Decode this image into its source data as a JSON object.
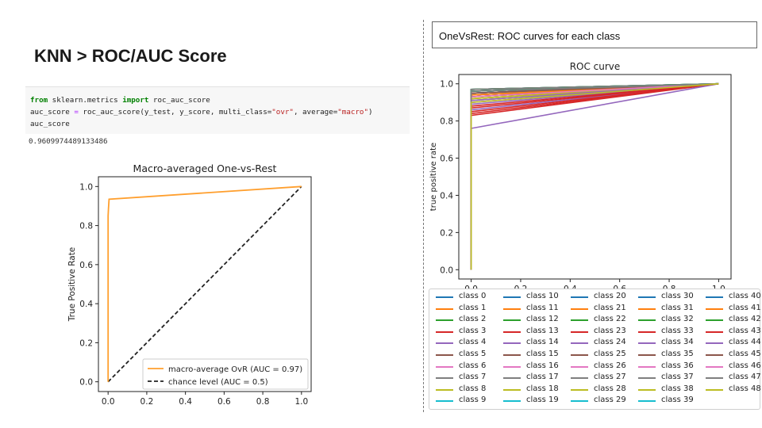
{
  "slide": {
    "title": "KNN > ROC/AUC Score",
    "right_panel_title": "OneVsRest: ROC curves for each class"
  },
  "code": {
    "line1": {
      "kw_from": "from",
      "module": " sklearn.metrics ",
      "kw_import": "import",
      "name": " roc_auc_score"
    },
    "line2": {
      "lhs": "auc_score ",
      "eq": "=",
      "call": " roc_auc_score(y_test, y_score, multi_class=",
      "str1": "\"ovr\"",
      "mid": ", average=",
      "str2": "\"macro\"",
      "end": ")"
    },
    "line3": "auc_score",
    "output": "0.9609974489133486"
  },
  "chart_data": [
    {
      "type": "line",
      "title": "Macro-averaged One-vs-Rest",
      "xlabel": "",
      "ylabel": "True Positive Rate",
      "xlim": [
        -0.05,
        1.05
      ],
      "ylim": [
        -0.05,
        1.05
      ],
      "xticks": [
        "0.0",
        "0.2",
        "0.4",
        "0.6",
        "0.8",
        "1.0"
      ],
      "yticks": [
        "0.0",
        "0.2",
        "0.4",
        "0.6",
        "0.8",
        "1.0"
      ],
      "legend_position": "lower-right",
      "series": [
        {
          "name": "macro-average OvR (AUC = 0.97)",
          "color": "#ff9f2e",
          "style": "solid",
          "x": [
            0.0,
            0.0,
            0.002,
            0.005,
            1.0
          ],
          "y": [
            0.0,
            0.85,
            0.89,
            0.935,
            1.0
          ]
        },
        {
          "name": "chance level (AUC = 0.5)",
          "color": "#222222",
          "style": "dashed",
          "x": [
            0.0,
            1.0
          ],
          "y": [
            0.0,
            1.0
          ]
        }
      ]
    },
    {
      "type": "line",
      "title": "ROC curve",
      "xlabel": "",
      "ylabel": "true positive rate",
      "xlim": [
        -0.05,
        1.05
      ],
      "ylim": [
        -0.05,
        1.05
      ],
      "xticks": [
        "0.0",
        "0.2",
        "0.4",
        "0.6",
        "0.8",
        "1.0"
      ],
      "yticks": [
        "0.0",
        "0.2",
        "0.4",
        "0.6",
        "0.8",
        "1.0"
      ],
      "legend_position": "below",
      "legend_columns": 5,
      "palette": [
        "#1f77b4",
        "#ff7f0e",
        "#2ca02c",
        "#d62728",
        "#9467bd",
        "#8c564b",
        "#e377c2",
        "#7f7f7f",
        "#bcbd22",
        "#17becf"
      ],
      "series_names": [
        "class 0",
        "class 1",
        "class 2",
        "class 3",
        "class 4",
        "class 5",
        "class 6",
        "class 7",
        "class 8",
        "class 9",
        "class 10",
        "class 11",
        "class 12",
        "class 13",
        "class 14",
        "class 15",
        "class 16",
        "class 17",
        "class 18",
        "class 19",
        "class 20",
        "class 21",
        "class 22",
        "class 23",
        "class 24",
        "class 25",
        "class 26",
        "class 27",
        "class 28",
        "class 29",
        "class 30",
        "class 31",
        "class 32",
        "class 33",
        "class 34",
        "class 35",
        "class 36",
        "class 37",
        "class 38",
        "class 39",
        "class 40",
        "class 41",
        "class 42",
        "class 43",
        "class 44",
        "class 45",
        "class 46",
        "class 47",
        "class 48"
      ],
      "tpr_at_fpr_0": [
        0.95,
        0.93,
        0.96,
        0.84,
        0.89,
        0.97,
        0.94,
        0.96,
        0.91,
        0.97,
        0.95,
        0.92,
        0.97,
        0.88,
        0.86,
        0.94,
        0.93,
        0.96,
        0.91,
        0.94,
        0.97,
        0.93,
        0.95,
        0.85,
        0.9,
        0.95,
        0.94,
        0.97,
        0.92,
        0.96,
        0.95,
        0.94,
        0.97,
        0.83,
        0.76,
        0.93,
        0.95,
        0.97,
        0.92,
        0.96,
        0.95,
        0.94,
        0.96,
        0.87,
        0.91,
        0.95,
        0.93,
        0.96,
        0.9
      ]
    }
  ]
}
